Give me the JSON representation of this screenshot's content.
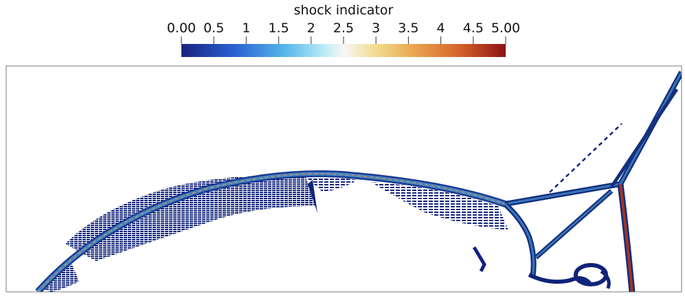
{
  "chart_data": {
    "type": "heatmap",
    "field_name": "shock indicator",
    "colorbar": {
      "title": "shock indicator",
      "range": [
        0.0,
        5.0
      ],
      "orientation": "horizontal",
      "placement": "top-center",
      "tick_values": [
        0.0,
        0.5,
        1,
        1.5,
        2,
        2.5,
        3,
        3.5,
        4,
        4.5,
        5.0
      ],
      "tick_labels": [
        "0.00",
        "0.5",
        "1",
        "1.5",
        "2",
        "2.5",
        "3",
        "3.5",
        "4",
        "4.5",
        "5.00"
      ],
      "colormap_stops": [
        {
          "value": 0.0,
          "color": "#1a237e"
        },
        {
          "value": 0.8,
          "color": "#2a5fd0"
        },
        {
          "value": 1.6,
          "color": "#58b7ea"
        },
        {
          "value": 2.2,
          "color": "#b8ecf6"
        },
        {
          "value": 2.5,
          "color": "#f7f7f5"
        },
        {
          "value": 3.0,
          "color": "#f1dc8e"
        },
        {
          "value": 3.6,
          "color": "#e9a54e"
        },
        {
          "value": 4.3,
          "color": "#d4612c"
        },
        {
          "value": 5.0,
          "color": "#8b1414"
        }
      ]
    },
    "colors": {
      "low": "#10237a",
      "shock_band": "#2f6bb8",
      "band_core": "#d08a5a",
      "mach_stem_core": "#b03018",
      "background": "#ffffff",
      "frame": "#7a7a7a"
    }
  }
}
